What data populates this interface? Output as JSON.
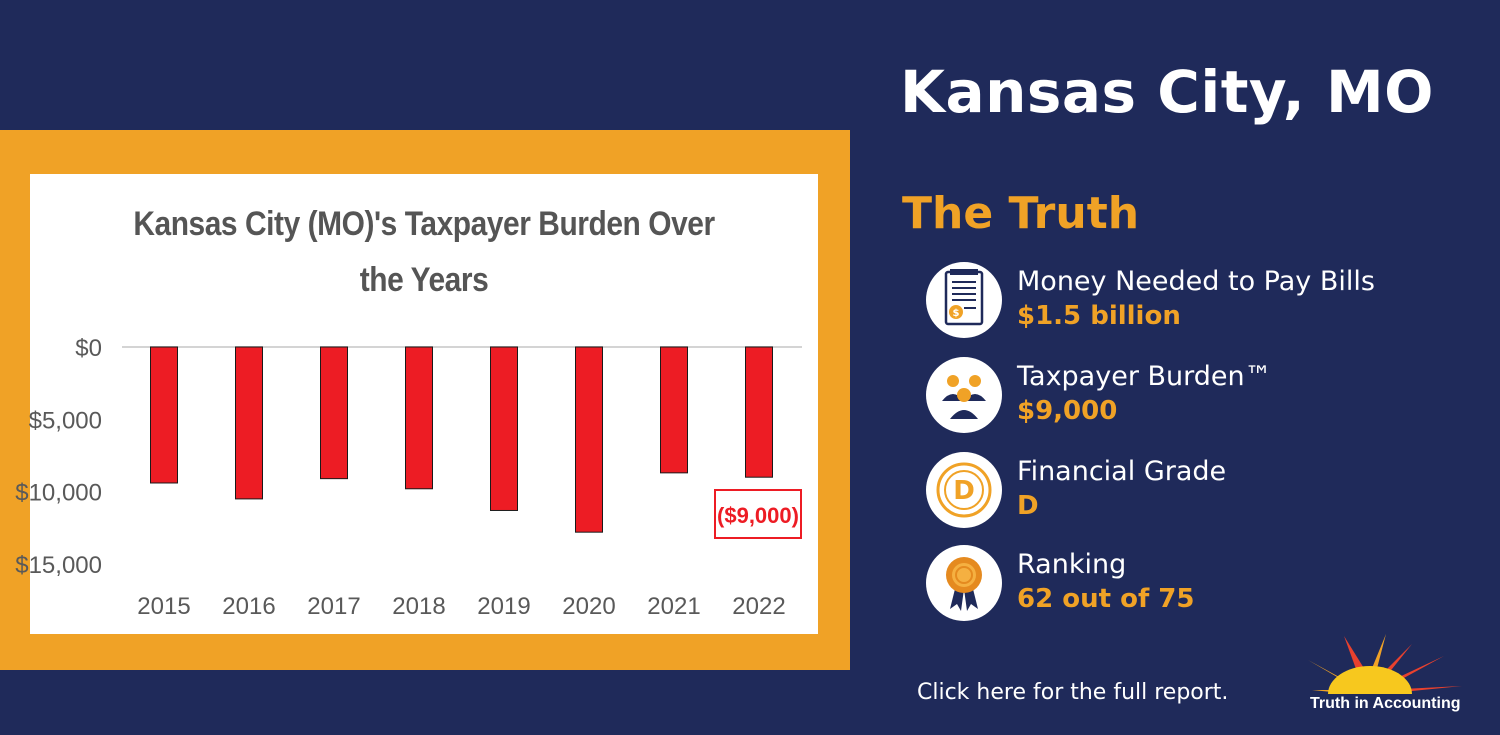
{
  "header": {
    "city": "Kansas City, MO",
    "section_title": "The Truth"
  },
  "stats": [
    {
      "label": "Money Needed to Pay Bills",
      "value": "$1.5 billion",
      "icon": "bill-document-icon"
    },
    {
      "label": "Taxpayer Burden™",
      "value": "$9,000",
      "icon": "taxpayers-group-icon"
    },
    {
      "label": "Financial Grade",
      "value": "D",
      "icon": "grade-d-icon"
    },
    {
      "label": "Ranking",
      "value": "62 out of 75",
      "icon": "award-ribbon-icon"
    }
  ],
  "footer": {
    "link_text": "Click here for the full report.",
    "logo_text": "Truth in Accounting"
  },
  "colors": {
    "background": "#1f2a5a",
    "accent": "#f0a226",
    "bar": "#ed1c24",
    "chart_bg": "#ffffff"
  },
  "chart_data": {
    "type": "bar",
    "title": "Kansas City (MO)'s Taxpayer Burden Over the Years",
    "categories": [
      "2015",
      "2016",
      "2017",
      "2018",
      "2019",
      "2020",
      "2021",
      "2022"
    ],
    "values": [
      -9400,
      -10500,
      -9100,
      -9800,
      -11300,
      -12800,
      -8700,
      -9000
    ],
    "y_ticks": [
      {
        "value": 0,
        "label": "$0"
      },
      {
        "value": -5000,
        "label": "$5,000"
      },
      {
        "value": -10000,
        "label": "$10,000"
      },
      {
        "value": -15000,
        "label": "$15,000"
      }
    ],
    "ylim": [
      -15000,
      0
    ],
    "grid": false,
    "annotation": {
      "category": "2022",
      "text": "($9,000)"
    }
  }
}
